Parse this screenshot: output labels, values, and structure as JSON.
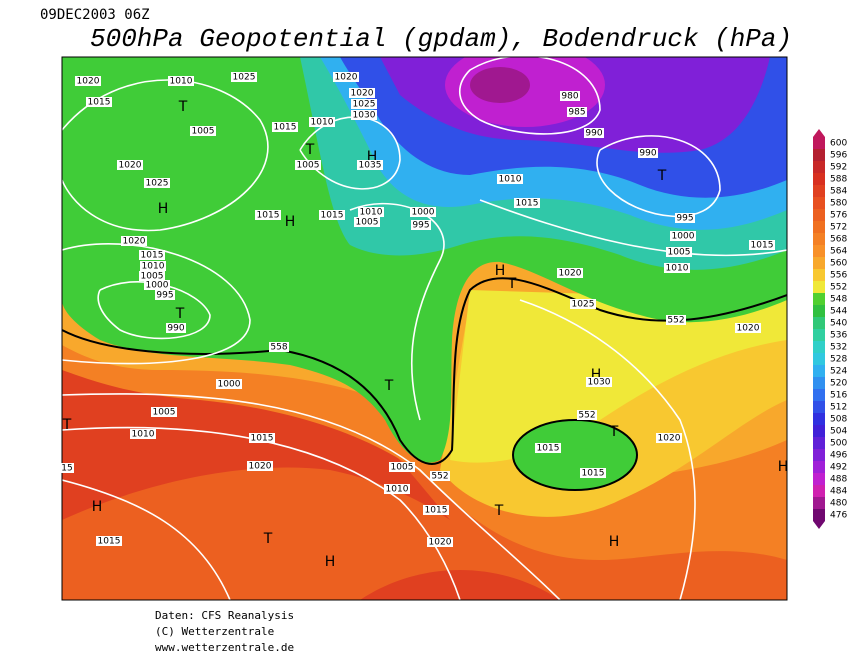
{
  "header": {
    "date": "09DEC2003 06Z",
    "title": "500hPa Geopotential (gpdam), Bodendruck (hPa)"
  },
  "map": {
    "labels": [
      "1020",
      "1015",
      "1010",
      "1025",
      "1020",
      "1020",
      "1025",
      "1030",
      "1015",
      "1010",
      "1005",
      "T",
      "T",
      "1005",
      "H",
      "1035",
      "980",
      "985",
      "990",
      "990",
      "T",
      "1020",
      "1025",
      "H",
      "1015",
      "H",
      "1015",
      "1010",
      "1005",
      "1000",
      "995",
      "1010",
      "1015",
      "995",
      "1000",
      "1005",
      "1010",
      "1015",
      "1020",
      "1015",
      "1010",
      "1005",
      "1000",
      "995",
      "T",
      "990",
      "H",
      "T",
      "1020",
      "1025",
      "552",
      "1020",
      "558",
      "1000",
      "T",
      "H",
      "1030",
      "1005",
      "T",
      "1010",
      "1015",
      "552",
      "T",
      "1020",
      "1015",
      "1020",
      "1005",
      "552",
      "1015",
      "15",
      "H",
      "1010",
      "H",
      "T",
      "1015",
      "1015",
      "T",
      "1020",
      "H",
      "H"
    ],
    "colorbar": {
      "ticks": [
        600,
        596,
        592,
        588,
        584,
        580,
        576,
        572,
        568,
        564,
        560,
        556,
        552,
        548,
        544,
        540,
        536,
        532,
        528,
        524,
        520,
        516,
        512,
        508,
        504,
        500,
        496,
        492,
        488,
        484,
        480,
        476
      ],
      "colors": [
        "#c0185c",
        "#b42030",
        "#c82828",
        "#d83020",
        "#e04020",
        "#e85020",
        "#ec6020",
        "#f07020",
        "#f48024",
        "#f89028",
        "#f8a82c",
        "#f8c830",
        "#f0e838",
        "#50d030",
        "#30c040",
        "#30c878",
        "#30d0a0",
        "#30d0c8",
        "#30c8e0",
        "#30b0f0",
        "#3090f0",
        "#3070f0",
        "#3050e8",
        "#3030e0",
        "#4020d8",
        "#6020d8",
        "#8020d8",
        "#a020d8",
        "#c020d0",
        "#d020b0",
        "#a01890",
        "#700870"
      ]
    }
  },
  "footer": {
    "lines": [
      "Daten: CFS Reanalysis",
      "(C) Wetterzentrale",
      "www.wetterzentrale.de"
    ]
  }
}
